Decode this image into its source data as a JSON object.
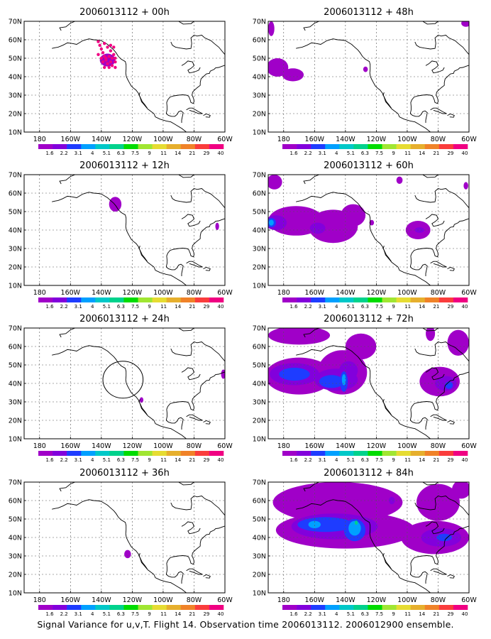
{
  "figure": {
    "caption": "Signal Variance for u,v,T. Flight 14. Observation time 2006013112. 2006012900 ensemble.",
    "columns": [
      [
        "panel_00h",
        "panel_12h",
        "panel_24h",
        "panel_36h"
      ],
      [
        "panel_48h",
        "panel_60h",
        "panel_72h",
        "panel_84h"
      ]
    ]
  },
  "colorbar": {
    "levels": [
      "1.6",
      "2.2",
      "3.1",
      "4",
      "5.1",
      "6.3",
      "7.5",
      "9",
      "11",
      "14",
      "21",
      "29",
      "40"
    ],
    "colors": [
      "#a000c8",
      "#8200dc",
      "#1e3cff",
      "#00a0ff",
      "#00c8c8",
      "#00d28c",
      "#00dc00",
      "#a0e632",
      "#e6dc32",
      "#e6af2d",
      "#f08228",
      "#fa3c3c",
      "#f00082"
    ]
  },
  "map": {
    "projection": "lat-lon",
    "lon_range": [
      170,
      300
    ],
    "lat_range": [
      10,
      70
    ],
    "x_ticks": [
      "180",
      "160W",
      "140W",
      "120W",
      "100W",
      "80W",
      "60W"
    ],
    "y_ticks": [
      "10N",
      "20N",
      "30N",
      "40N",
      "50N",
      "60N",
      "70N"
    ],
    "grid": "dashed"
  },
  "panels": {
    "panel_00h": {
      "title": "2006013112 + 00h",
      "track": [
        [
          218,
          59
        ],
        [
          219,
          57
        ],
        [
          220,
          55
        ],
        [
          221,
          53
        ],
        [
          222,
          51
        ],
        [
          223,
          49
        ],
        [
          224,
          47
        ],
        [
          225,
          45
        ],
        [
          222,
          58
        ],
        [
          224,
          56
        ],
        [
          226,
          54
        ],
        [
          228,
          52
        ],
        [
          229,
          50
        ],
        [
          229,
          48
        ],
        [
          229,
          45
        ],
        [
          227,
          46
        ],
        [
          221,
          48
        ],
        [
          223,
          50
        ],
        [
          225,
          51
        ],
        [
          227,
          50
        ],
        [
          226,
          48
        ],
        [
          224,
          47
        ],
        [
          222,
          45
        ],
        [
          220,
          50
        ],
        [
          218,
          52
        ],
        [
          226,
          57
        ],
        [
          228,
          56
        ]
      ],
      "track_color": "#f00082",
      "blobs": [
        {
          "lon": 224,
          "lat": 49,
          "rx": 5,
          "ry": 3.5,
          "level": 0
        }
      ]
    },
    "panel_12h": {
      "title": "2006013112 + 12h",
      "blobs": [
        {
          "lon": 229,
          "lat": 54,
          "rx": 4,
          "ry": 4,
          "level": 0
        },
        {
          "lon": 295,
          "lat": 42,
          "rx": 1.2,
          "ry": 2,
          "level": 0
        }
      ]
    },
    "panel_24h": {
      "title": "2006013112 + 24h",
      "circle": {
        "lon": 234,
        "lat": 42,
        "rx": 13,
        "ry": 10
      },
      "blobs": [
        {
          "lon": 246,
          "lat": 31,
          "rx": 1.2,
          "ry": 1.5,
          "level": 0
        },
        {
          "lon": 299,
          "lat": 45,
          "rx": 1.5,
          "ry": 2.5,
          "level": 0
        }
      ]
    },
    "panel_36h": {
      "title": "2006013112 + 36h",
      "blobs": [
        {
          "lon": 237,
          "lat": 31,
          "rx": 2.2,
          "ry": 2.2,
          "level": 0
        }
      ]
    },
    "panel_48h": {
      "title": "2006013112 + 48h",
      "blobs": [
        {
          "lon": 172,
          "lat": 66,
          "rx": 2,
          "ry": 4,
          "level": 0
        },
        {
          "lon": 298,
          "lat": 69,
          "rx": 3,
          "ry": 2,
          "level": 0
        },
        {
          "lon": 176,
          "lat": 45,
          "rx": 7,
          "ry": 5,
          "level": 0
        },
        {
          "lon": 186,
          "lat": 41,
          "rx": 7,
          "ry": 3.5,
          "level": 0
        },
        {
          "lon": 233,
          "lat": 44,
          "rx": 1.5,
          "ry": 1.5,
          "level": 0
        }
      ]
    },
    "panel_60h": {
      "title": "2006013112 + 60h",
      "blobs": [
        {
          "lon": 174,
          "lat": 66,
          "rx": 5,
          "ry": 4,
          "level": 0
        },
        {
          "lon": 188,
          "lat": 45,
          "rx": 18,
          "ry": 8,
          "level": 0
        },
        {
          "lon": 212,
          "lat": 42,
          "rx": 16,
          "ry": 9,
          "level": 0
        },
        {
          "lon": 225,
          "lat": 48,
          "rx": 8,
          "ry": 6,
          "level": 0
        },
        {
          "lon": 175,
          "lat": 44,
          "rx": 7,
          "ry": 4,
          "level": 1
        },
        {
          "lon": 172,
          "lat": 44,
          "rx": 3,
          "ry": 2.5,
          "level": 2
        },
        {
          "lon": 172,
          "lat": 44,
          "rx": 1.6,
          "ry": 1.6,
          "level": 3
        },
        {
          "lon": 202,
          "lat": 41,
          "rx": 5,
          "ry": 3,
          "level": 1
        },
        {
          "lon": 267,
          "lat": 40,
          "rx": 8,
          "ry": 5,
          "level": 0
        },
        {
          "lon": 268,
          "lat": 40,
          "rx": 3,
          "ry": 1.5,
          "level": 1
        },
        {
          "lon": 255,
          "lat": 67,
          "rx": 2,
          "ry": 2,
          "level": 0
        },
        {
          "lon": 298,
          "lat": 64,
          "rx": 1.5,
          "ry": 2,
          "level": 0
        },
        {
          "lon": 237,
          "lat": 44,
          "rx": 1.5,
          "ry": 1.5,
          "level": 0
        }
      ]
    },
    "panel_72h": {
      "title": "2006013112 + 72h",
      "blobs": [
        {
          "lon": 190,
          "lat": 66,
          "rx": 20,
          "ry": 5,
          "level": 0
        },
        {
          "lon": 230,
          "lat": 60,
          "rx": 10,
          "ry": 7,
          "level": 0
        },
        {
          "lon": 293,
          "lat": 62,
          "rx": 7,
          "ry": 7,
          "level": 0
        },
        {
          "lon": 275,
          "lat": 67,
          "rx": 3,
          "ry": 4,
          "level": 0
        },
        {
          "lon": 190,
          "lat": 44,
          "rx": 22,
          "ry": 10,
          "level": 0
        },
        {
          "lon": 218,
          "lat": 46,
          "rx": 16,
          "ry": 12,
          "level": 0
        },
        {
          "lon": 187,
          "lat": 45,
          "rx": 16,
          "ry": 6,
          "level": 1
        },
        {
          "lon": 214,
          "lat": 42,
          "rx": 14,
          "ry": 6,
          "level": 1
        },
        {
          "lon": 222,
          "lat": 47,
          "rx": 6,
          "ry": 5,
          "level": 1
        },
        {
          "lon": 187,
          "lat": 45,
          "rx": 10,
          "ry": 3.5,
          "level": 2
        },
        {
          "lon": 211,
          "lat": 41,
          "rx": 8,
          "ry": 3.5,
          "level": 2
        },
        {
          "lon": 219,
          "lat": 41,
          "rx": 2.5,
          "ry": 5.5,
          "level": 2
        },
        {
          "lon": 219,
          "lat": 42,
          "rx": 1.3,
          "ry": 3,
          "level": 3
        },
        {
          "lon": 281,
          "lat": 41,
          "rx": 13,
          "ry": 8,
          "level": 0
        },
        {
          "lon": 285,
          "lat": 40,
          "rx": 7,
          "ry": 4,
          "level": 1
        },
        {
          "lon": 287,
          "lat": 39,
          "rx": 2.5,
          "ry": 2,
          "level": 2
        }
      ]
    },
    "panel_84h": {
      "title": "2006013112 + 84h",
      "blobs": [
        {
          "lon": 215,
          "lat": 59,
          "rx": 42,
          "ry": 11,
          "level": 0
        },
        {
          "lon": 280,
          "lat": 59,
          "rx": 14,
          "ry": 10,
          "level": 0
        },
        {
          "lon": 295,
          "lat": 66,
          "rx": 6,
          "ry": 5,
          "level": 0
        },
        {
          "lon": 220,
          "lat": 44,
          "rx": 45,
          "ry": 10,
          "level": 0
        },
        {
          "lon": 278,
          "lat": 40,
          "rx": 22,
          "ry": 9,
          "level": 0
        },
        {
          "lon": 213,
          "lat": 46,
          "rx": 28,
          "ry": 7,
          "level": 1
        },
        {
          "lon": 282,
          "lat": 40,
          "rx": 13,
          "ry": 5,
          "level": 1
        },
        {
          "lon": 207,
          "lat": 47,
          "rx": 18,
          "ry": 4,
          "level": 2
        },
        {
          "lon": 226,
          "lat": 44,
          "rx": 7,
          "ry": 6,
          "level": 2
        },
        {
          "lon": 284,
          "lat": 40,
          "rx": 5,
          "ry": 2,
          "level": 2
        },
        {
          "lon": 226,
          "lat": 45,
          "rx": 4,
          "ry": 4,
          "level": 3
        },
        {
          "lon": 227,
          "lat": 48,
          "rx": 1,
          "ry": 1.2,
          "level": 5
        },
        {
          "lon": 200,
          "lat": 47,
          "rx": 4,
          "ry": 2,
          "level": 3
        },
        {
          "lon": 250,
          "lat": 60,
          "rx": 2,
          "ry": 2,
          "level": 1
        }
      ]
    }
  }
}
